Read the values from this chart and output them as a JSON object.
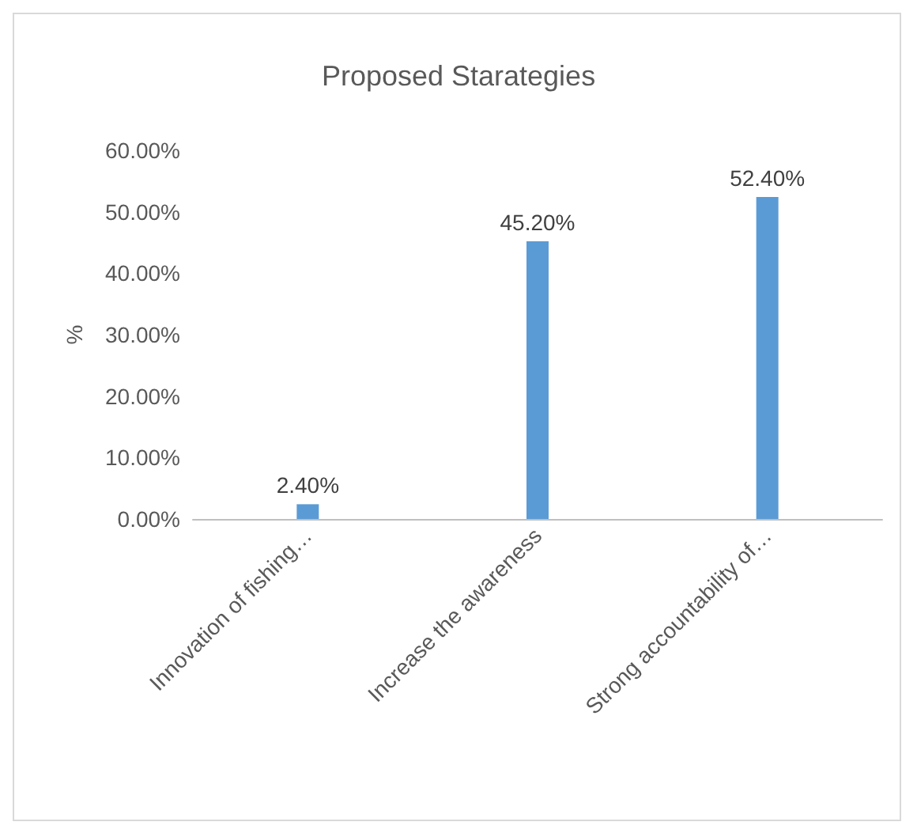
{
  "chart_data": {
    "type": "bar",
    "title": "Proposed Starategies",
    "ylabel": "%",
    "categories": [
      "Innovation of fishing…",
      "Increase the awareness",
      "Strong accountability of…"
    ],
    "values": [
      2.4,
      45.2,
      52.4
    ],
    "color": "#5b9bd5",
    "value_labels": [
      "2.40%",
      "45.20%",
      "52.40%"
    ],
    "ylim": [
      0,
      60
    ],
    "yticks": [
      {
        "value": 0,
        "label": "0.00%"
      },
      {
        "value": 10,
        "label": "10.00%"
      },
      {
        "value": 20,
        "label": "20.00%"
      },
      {
        "value": 30,
        "label": "30.00%"
      },
      {
        "value": 40,
        "label": "40.00%"
      },
      {
        "value": 50,
        "label": "50.00%"
      },
      {
        "value": 60,
        "label": "60.00%"
      }
    ],
    "grid": false
  }
}
